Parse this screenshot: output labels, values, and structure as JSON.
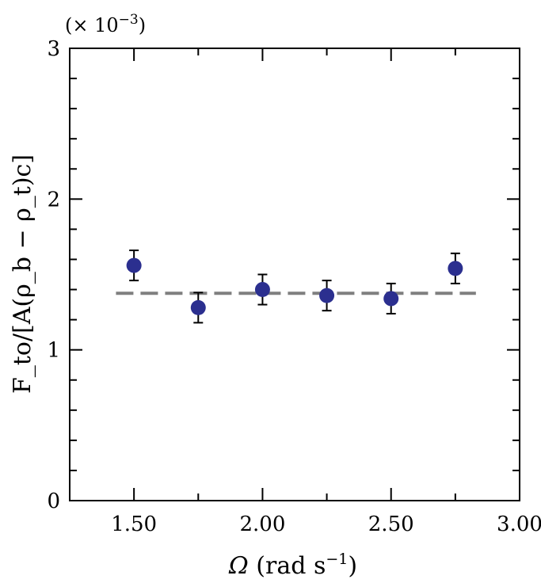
{
  "chart_data": {
    "type": "scatter",
    "title": "",
    "xlabel": "Ω (rad s⁻¹)",
    "xlabel_parts": {
      "symbol": "Ω",
      "unit_open": " (rad s",
      "unit_exp": "−1",
      "unit_close": ")"
    },
    "ylabel": "F_to/[A(ρ_b − ρ_t)c]",
    "y_multiplier": "(× 10⁻³)",
    "y_multiplier_parts": {
      "prefix": "(× 10",
      "exp": "−3",
      "suffix": ")"
    },
    "xlim": [
      1.25,
      3.0
    ],
    "ylim": [
      0,
      3
    ],
    "x_ticks": [
      1.5,
      1.75,
      2.0,
      2.25,
      2.5,
      2.75,
      3.0
    ],
    "x_tick_labels": [
      "1.50",
      "",
      "2.00",
      "",
      "2.50",
      "",
      "3.00"
    ],
    "y_ticks": [
      0,
      1,
      2,
      3
    ],
    "y_tick_labels": [
      "0",
      "1",
      "2",
      "3"
    ],
    "y_minor_step": 0.2,
    "grid": false,
    "series": [
      {
        "marker_color": "#2b2f8f",
        "x": [
          1.5,
          1.75,
          2.0,
          2.25,
          2.5,
          2.75
        ],
        "y": [
          1.56,
          1.28,
          1.4,
          1.36,
          1.34,
          1.54
        ],
        "err": [
          0.1,
          0.1,
          0.1,
          0.1,
          0.1,
          0.1
        ]
      }
    ],
    "reference_line": {
      "y": 1.375,
      "x_range": [
        1.43,
        2.83
      ],
      "style": "dashed",
      "color": "#7f7f7f"
    }
  }
}
